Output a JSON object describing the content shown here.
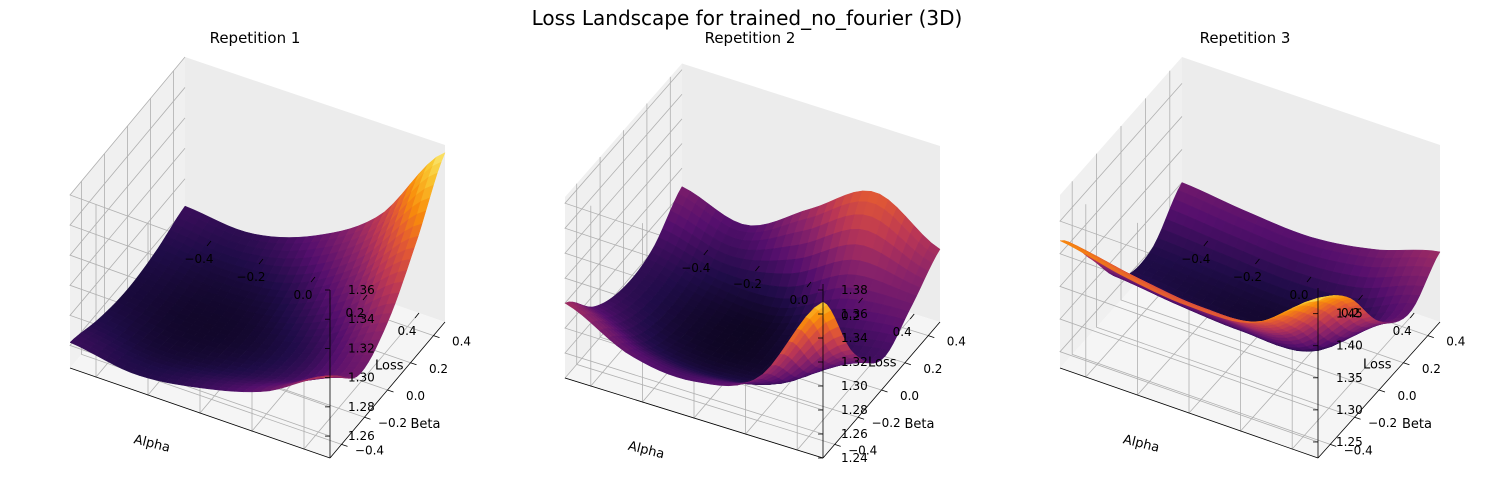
{
  "figure": {
    "title": "Loss Landscape for trained_no_fourier (3D)"
  },
  "chart_data": [
    {
      "type": "surface",
      "title": "Repetition 1",
      "xlabel": "Alpha",
      "ylabel": "Beta",
      "zlabel": "Loss",
      "xlim": [
        -0.5,
        0.5
      ],
      "ylim": [
        -0.5,
        0.5
      ],
      "zlim": [
        1.245,
        1.36
      ],
      "xticks": [
        -0.4,
        -0.2,
        0.0,
        0.2,
        0.4
      ],
      "yticks": [
        -0.4,
        -0.2,
        0.0,
        0.2,
        0.4
      ],
      "zticks": [
        1.26,
        1.28,
        1.3,
        1.32,
        1.34,
        1.36
      ],
      "colormap": "inferno",
      "grid": true,
      "alpha_values": [
        -0.5,
        -0.25,
        0.0,
        0.25,
        0.5
      ],
      "beta_values": [
        -0.5,
        -0.25,
        0.0,
        0.25,
        0.5
      ],
      "loss": [
        [
          1.262,
          1.255,
          1.252,
          1.255,
          1.262
        ],
        [
          1.256,
          1.25,
          1.248,
          1.251,
          1.259
        ],
        [
          1.262,
          1.253,
          1.25,
          1.256,
          1.272
        ],
        [
          1.275,
          1.262,
          1.262,
          1.28,
          1.3
        ],
        [
          1.3,
          1.278,
          1.29,
          1.32,
          1.355
        ]
      ]
    },
    {
      "type": "surface",
      "title": "Repetition 2",
      "xlabel": "Alpha",
      "ylabel": "Beta",
      "zlabel": "Loss",
      "xlim": [
        -0.5,
        0.5
      ],
      "ylim": [
        -0.5,
        0.5
      ],
      "zlim": [
        1.24,
        1.385
      ],
      "xticks": [
        -0.4,
        -0.2,
        0.0,
        0.2,
        0.4
      ],
      "yticks": [
        -0.4,
        -0.2,
        0.0,
        0.2,
        0.4
      ],
      "zticks": [
        1.24,
        1.26,
        1.28,
        1.3,
        1.32,
        1.34,
        1.36,
        1.38
      ],
      "colormap": "inferno",
      "grid": true,
      "alpha_values": [
        -0.5,
        -0.25,
        0.0,
        0.25,
        0.5
      ],
      "beta_values": [
        -0.5,
        -0.25,
        0.0,
        0.25,
        0.5
      ],
      "loss": [
        [
          1.3,
          1.27,
          1.258,
          1.262,
          1.285
        ],
        [
          1.275,
          1.252,
          1.245,
          1.25,
          1.27
        ],
        [
          1.27,
          1.248,
          1.242,
          1.25,
          1.3
        ],
        [
          1.29,
          1.258,
          1.252,
          1.275,
          1.33
        ],
        [
          1.37,
          1.3,
          1.265,
          1.28,
          1.3
        ]
      ]
    },
    {
      "type": "surface",
      "title": "Repetition 3",
      "xlabel": "Alpha",
      "ylabel": "Beta",
      "zlabel": "Loss",
      "xlim": [
        -0.5,
        0.5
      ],
      "ylim": [
        -0.5,
        0.5
      ],
      "zlim": [
        1.225,
        1.49
      ],
      "xticks": [
        -0.4,
        -0.2,
        0.0,
        0.2,
        0.4
      ],
      "yticks": [
        -0.4,
        -0.2,
        0.0,
        0.2,
        0.4
      ],
      "zticks": [
        1.25,
        1.3,
        1.35,
        1.4,
        1.45
      ],
      "colormap": "inferno",
      "grid": true,
      "alpha_values": [
        -0.5,
        -0.25,
        0.0,
        0.25,
        0.5
      ],
      "beta_values": [
        -0.5,
        -0.25,
        0.0,
        0.25,
        0.5
      ],
      "loss": [
        [
          1.42,
          1.34,
          1.26,
          1.25,
          1.3
        ],
        [
          1.4,
          1.33,
          1.25,
          1.245,
          1.29
        ],
        [
          1.39,
          1.32,
          1.245,
          1.24,
          1.285
        ],
        [
          1.4,
          1.33,
          1.25,
          1.245,
          1.3
        ],
        [
          1.47,
          1.42,
          1.33,
          1.29,
          1.33
        ]
      ]
    }
  ]
}
